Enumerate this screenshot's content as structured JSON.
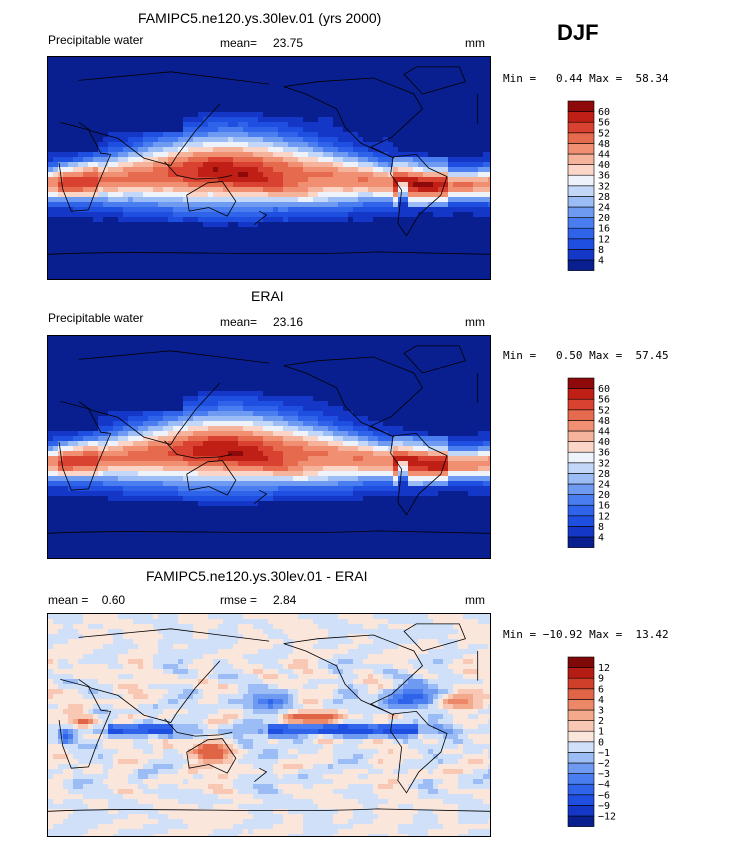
{
  "season": "DJF",
  "panels": [
    {
      "title": "FAMIPC5.ne120.ys.30lev.01 (yrs 2000)",
      "left": "Precipitable water",
      "middle_label": "mean=",
      "middle_value": "23.75",
      "right_value": "",
      "units": "mm",
      "minmax": "Min =   0.44 Max =  58.34",
      "field": "pw"
    },
    {
      "title": "ERAI",
      "left": "Precipitable water",
      "middle_label": "mean=",
      "middle_value": "23.16",
      "right_value": "",
      "units": "mm",
      "minmax": "Min =   0.50 Max =  57.45",
      "field": "pw"
    },
    {
      "title": "FAMIPC5.ne120.ys.30lev.01 - ERAI",
      "left": "mean =    0.60",
      "middle_label": "rmse =",
      "middle_value": "2.84",
      "right_value": "",
      "units": "mm",
      "minmax": "Min = −10.92 Max =  13.42",
      "field": "diff"
    }
  ],
  "chart_data": [
    {
      "type": "heatmap",
      "title": "FAMIPC5.ne120.ys.30lev.01 (yrs 2000)",
      "variable": "Precipitable water",
      "units": "mm",
      "mean": 23.75,
      "min": 0.44,
      "max": 58.34,
      "colorbar_levels": [
        4,
        8,
        12,
        16,
        20,
        24,
        28,
        32,
        36,
        40,
        44,
        48,
        52,
        56,
        60
      ],
      "colorbar_colors": [
        "#0a1f8f",
        "#1537c8",
        "#1f4fe0",
        "#2e63ea",
        "#4a7ef0",
        "#6f9af2",
        "#9bbcf5",
        "#c3d8f8",
        "#eef3fb",
        "#fbd6c8",
        "#f6b39b",
        "#f08f72",
        "#e66a4d",
        "#d94130",
        "#c01f15",
        "#8e0a0a"
      ]
    },
    {
      "type": "heatmap",
      "title": "ERAI",
      "variable": "Precipitable water",
      "units": "mm",
      "mean": 23.16,
      "min": 0.5,
      "max": 57.45,
      "colorbar_levels": [
        4,
        8,
        12,
        16,
        20,
        24,
        28,
        32,
        36,
        40,
        44,
        48,
        52,
        56,
        60
      ],
      "colorbar_colors": [
        "#0a1f8f",
        "#1537c8",
        "#1f4fe0",
        "#2e63ea",
        "#4a7ef0",
        "#6f9af2",
        "#9bbcf5",
        "#c3d8f8",
        "#eef3fb",
        "#fbd6c8",
        "#f6b39b",
        "#f08f72",
        "#e66a4d",
        "#d94130",
        "#c01f15",
        "#8e0a0a"
      ]
    },
    {
      "type": "heatmap",
      "title": "FAMIPC5.ne120.ys.30lev.01 - ERAI",
      "units": "mm",
      "mean": 0.6,
      "rmse": 2.84,
      "min": -10.92,
      "max": 13.42,
      "colorbar_levels": [
        -12,
        -9,
        -6,
        -4,
        -3,
        -2,
        -1,
        0,
        1,
        2,
        3,
        4,
        6,
        9,
        12
      ],
      "colorbar_colors": [
        "#0a1f8f",
        "#1537c8",
        "#1f4fe0",
        "#2e63ea",
        "#4a7ef0",
        "#6f9af2",
        "#9bbcf5",
        "#cfe0f8",
        "#fbe6dc",
        "#f8c8b4",
        "#f3a98c",
        "#ec8868",
        "#e06546",
        "#cf3f2a",
        "#b41c14",
        "#7f0808"
      ]
    }
  ]
}
